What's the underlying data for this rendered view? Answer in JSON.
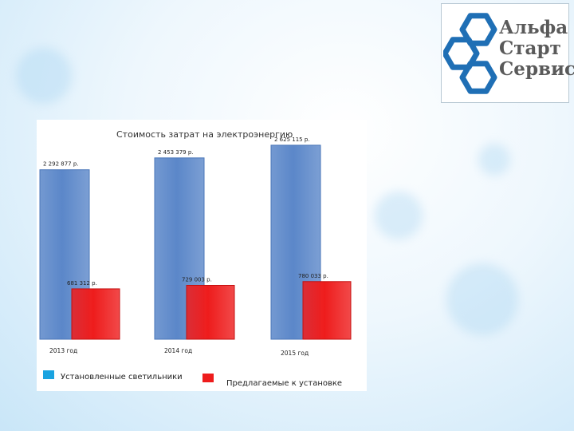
{
  "logo": {
    "words": [
      "Альфа",
      "Старт",
      "Сервис"
    ],
    "icon": "hexagon-cluster-icon",
    "colors": {
      "hex": "#1f6fb5",
      "text": "#5a5a5a"
    }
  },
  "chart_data": {
    "type": "bar",
    "title": "Стоимость затрат на электроэнергию",
    "categories": [
      "2013 год",
      "2014 год",
      "2015 год"
    ],
    "series": [
      {
        "name": "Установленные светильники",
        "color": "#5b87c9",
        "values": [
          2292877,
          2453379,
          2625115
        ],
        "labels": [
          "2 292 877 р.",
          "2 453 379 р.",
          "2 625 115 р."
        ]
      },
      {
        "name": "Предлагаемые к установке",
        "color": "#ee1c1c",
        "values": [
          681312,
          729003,
          780033
        ],
        "labels": [
          "681 312 р.",
          "729 003 р.",
          "780 033 р."
        ]
      }
    ],
    "ylim": [
      0,
      2700000
    ],
    "grid": false,
    "legend_position": "bottom"
  }
}
